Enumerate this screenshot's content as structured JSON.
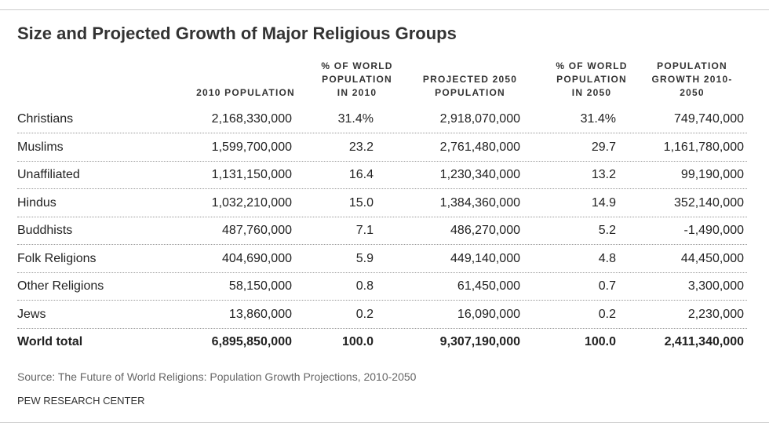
{
  "title": "Size and Projected Growth of Major Religious Groups",
  "table": {
    "headers": [
      [
        "2010 POPULATION"
      ],
      [
        "% OF WORLD",
        "POPULATION",
        "IN 2010"
      ],
      [
        "PROJECTED 2050",
        "POPULATION"
      ],
      [
        "% OF WORLD",
        "POPULATION",
        "IN 2050"
      ],
      [
        "POPULATION",
        "GROWTH 2010-",
        "2050"
      ]
    ],
    "rows": [
      [
        "Christians",
        "2,168,330,000",
        "31.4%",
        "2,918,070,000",
        "31.4%",
        "749,740,000"
      ],
      [
        "Muslims",
        "1,599,700,000",
        "23.2",
        "2,761,480,000",
        "29.7",
        "1,161,780,000"
      ],
      [
        "Unaffiliated",
        "1,131,150,000",
        "16.4",
        "1,230,340,000",
        "13.2",
        "99,190,000"
      ],
      [
        "Hindus",
        "1,032,210,000",
        "15.0",
        "1,384,360,000",
        "14.9",
        "352,140,000"
      ],
      [
        "Buddhists",
        "487,760,000",
        "7.1",
        "486,270,000",
        "5.2",
        "-1,490,000"
      ],
      [
        "Folk Religions",
        "404,690,000",
        "5.9",
        "449,140,000",
        "4.8",
        "44,450,000"
      ],
      [
        "Other Religions",
        "58,150,000",
        "0.8",
        "61,450,000",
        "0.7",
        "3,300,000"
      ],
      [
        "Jews",
        "13,860,000",
        "0.2",
        "16,090,000",
        "0.2",
        "2,230,000"
      ],
      [
        "World total",
        "6,895,850,000",
        "100.0",
        "9,307,190,000",
        "100.0",
        "2,411,340,000"
      ]
    ]
  },
  "source": "Source: The Future of World Religions: Population Growth Projections, 2010-2050",
  "footer": "PEW RESEARCH CENTER"
}
